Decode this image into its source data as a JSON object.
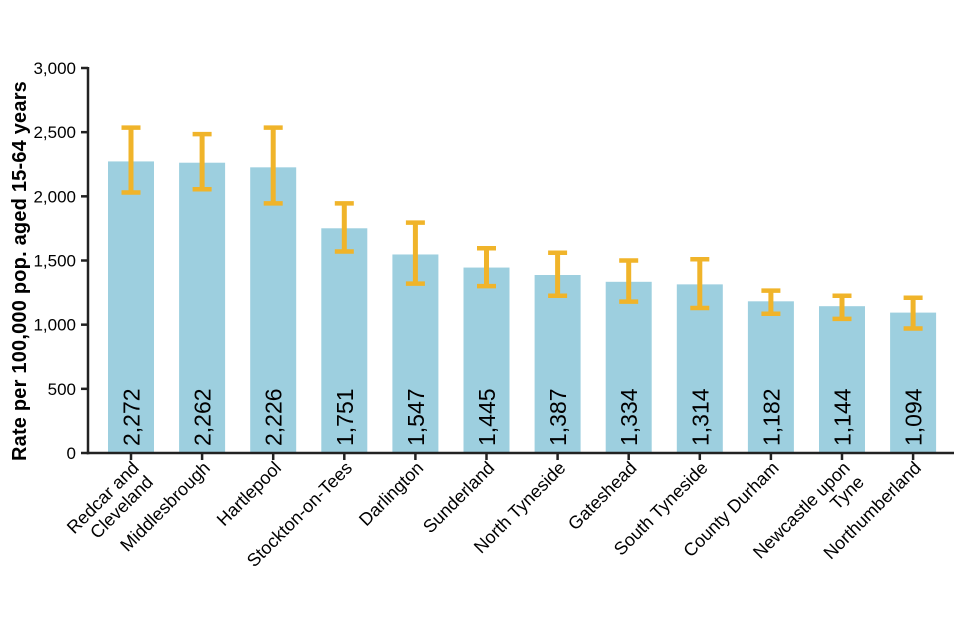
{
  "chart_data": {
    "type": "bar",
    "title": "",
    "xlabel": "",
    "ylabel": "Rate per 100,000 pop. aged 15-64 years",
    "categories": [
      "Redcar and\nCleveland",
      "Middlesbrough",
      "Hartlepool",
      "Stockton-on-Tees",
      "Darlington",
      "Sunderland",
      "North Tyneside",
      "Gateshead",
      "South Tyneside",
      "County Durham",
      "Newcastle upon\nTyne",
      "Northumberland"
    ],
    "values": [
      2272,
      2262,
      2226,
      1751,
      1547,
      1445,
      1387,
      1334,
      1314,
      1182,
      1144,
      1094
    ],
    "value_labels": [
      "2,272",
      "2,262",
      "2,226",
      "1,751",
      "1,547",
      "1,445",
      "1,387",
      "1,334",
      "1,314",
      "1,182",
      "1,144",
      "1,094"
    ],
    "error_low": [
      2030,
      2055,
      1945,
      1570,
      1320,
      1300,
      1225,
      1180,
      1130,
      1085,
      1045,
      970
    ],
    "error_high": [
      2535,
      2485,
      2535,
      1945,
      1795,
      1595,
      1560,
      1500,
      1510,
      1265,
      1225,
      1210
    ],
    "ylim": [
      0,
      3000
    ],
    "ytick_step": 500,
    "ytick_labels": [
      "0",
      "500",
      "1,000",
      "1,500",
      "2,000",
      "2,500",
      "3,000"
    ],
    "grid": false,
    "legend": false,
    "bar_color": "#9dcfdf",
    "error_color": "#f0b42a",
    "axis_color": "#222222",
    "text_color": "#000000",
    "x_label_rotation_deg": -45,
    "value_label_rotation_deg": -90
  }
}
